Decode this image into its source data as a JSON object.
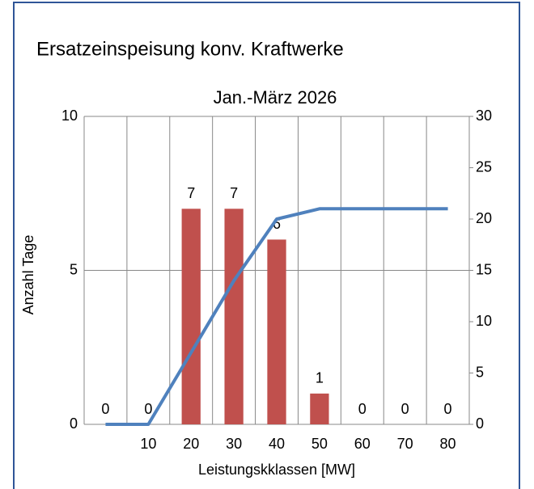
{
  "chart_data": {
    "type": "bar",
    "title": "Ersatzeinspeisung konv. Kraftwerke",
    "subtitle": "Jan.-März 2026",
    "x_label": "Leistungskklassen [MW]",
    "y_label": "Anzahl Tage",
    "categories": [
      null,
      "10",
      "20",
      "30",
      "40",
      "50",
      "60",
      "70",
      "80"
    ],
    "series": [
      {
        "type": "bar",
        "color": "#c0504d",
        "values": [
          0,
          0,
          7,
          7,
          6,
          1,
          0,
          0,
          0
        ]
      },
      {
        "type": "line",
        "color": "#4f81bd",
        "axis": "y2",
        "values": [
          0,
          0,
          7,
          14,
          20,
          21,
          21,
          21,
          21
        ]
      }
    ],
    "ylim": [
      0,
      10
    ],
    "yticks": [
      0,
      5,
      10
    ],
    "ytick_color": "#c00000",
    "y2lim": [
      0,
      30
    ],
    "y2ticks": [
      0,
      5,
      10,
      15,
      20,
      25,
      30
    ],
    "y2tick_color": "#0000cc",
    "grid": true
  }
}
